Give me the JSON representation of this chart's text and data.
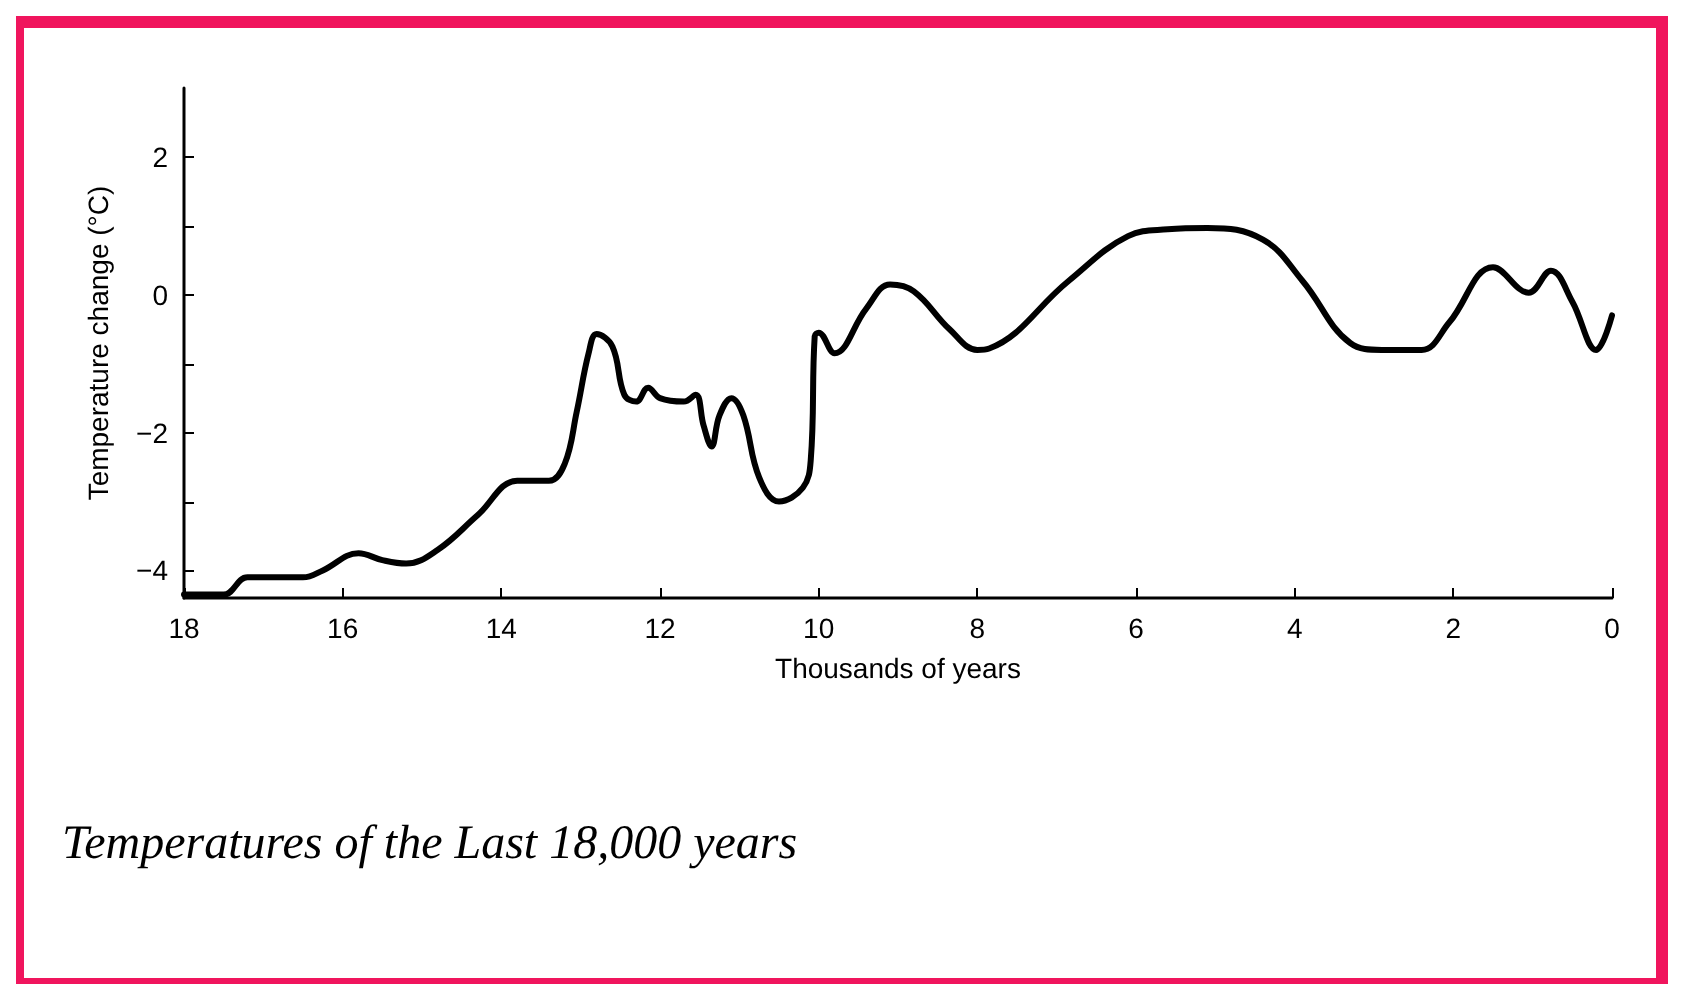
{
  "chart_data": {
    "type": "line",
    "title": "Temperatures of the Last 18,000 years",
    "xlabel": "Thousands of years",
    "ylabel": "Temperature change (°C)",
    "xlim": [
      18,
      0
    ],
    "xticks": [
      18,
      16,
      14,
      12,
      10,
      8,
      6,
      4,
      2,
      0
    ],
    "ylim": [
      -4.4,
      3
    ],
    "yticks": [
      -4,
      {
        "value": -3,
        "label": null
      },
      -2,
      {
        "value": -1,
        "label": null
      },
      0,
      {
        "value": 1,
        "label": null
      },
      2
    ],
    "grid": false,
    "marker": "none",
    "line_style": "solid",
    "series": [
      {
        "color": "#000000",
        "x": [
          18,
          17.5,
          17.2,
          16.5,
          16.25,
          15.8,
          15.5,
          15.2,
          14.8,
          14.3,
          13.8,
          13.4,
          13.2,
          13.05,
          12.9,
          12.8,
          12.6,
          12.45,
          12.3,
          12.15,
          12.0,
          11.7,
          11.55,
          11.45,
          11.35,
          11.25,
          11.1,
          10.95,
          10.75,
          10.5,
          10.2,
          10.1,
          10.05,
          10.0,
          9.8,
          9.4,
          9.1,
          8.8,
          8.35,
          8.0,
          7.85,
          6.85,
          6.1,
          5.6,
          5.1,
          4.4,
          3.9,
          3.3,
          2.9,
          2.4,
          2.05,
          1.5,
          1.05,
          0.77,
          0.5,
          0.2,
          0
        ],
        "values": [
          -4.35,
          -4.35,
          -4.1,
          -4.1,
          -4.0,
          -3.75,
          -3.85,
          -3.9,
          -3.7,
          -3.2,
          -2.7,
          -2.7,
          -2.45,
          -1.7,
          -0.85,
          -0.57,
          -0.75,
          -1.45,
          -1.55,
          -1.35,
          -1.5,
          -1.55,
          -1.45,
          -1.9,
          -2.2,
          -1.75,
          -1.5,
          -1.75,
          -2.65,
          -3.0,
          -2.8,
          -2.4,
          -0.6,
          -0.55,
          -0.85,
          -0.2,
          0.15,
          0.05,
          -0.5,
          -0.8,
          -0.78,
          0.2,
          0.85,
          0.95,
          0.97,
          0.8,
          0.2,
          -0.7,
          -0.8,
          -0.8,
          -0.4,
          0.4,
          0.03,
          0.35,
          -0.1,
          -0.8,
          -0.3
        ]
      }
    ]
  }
}
